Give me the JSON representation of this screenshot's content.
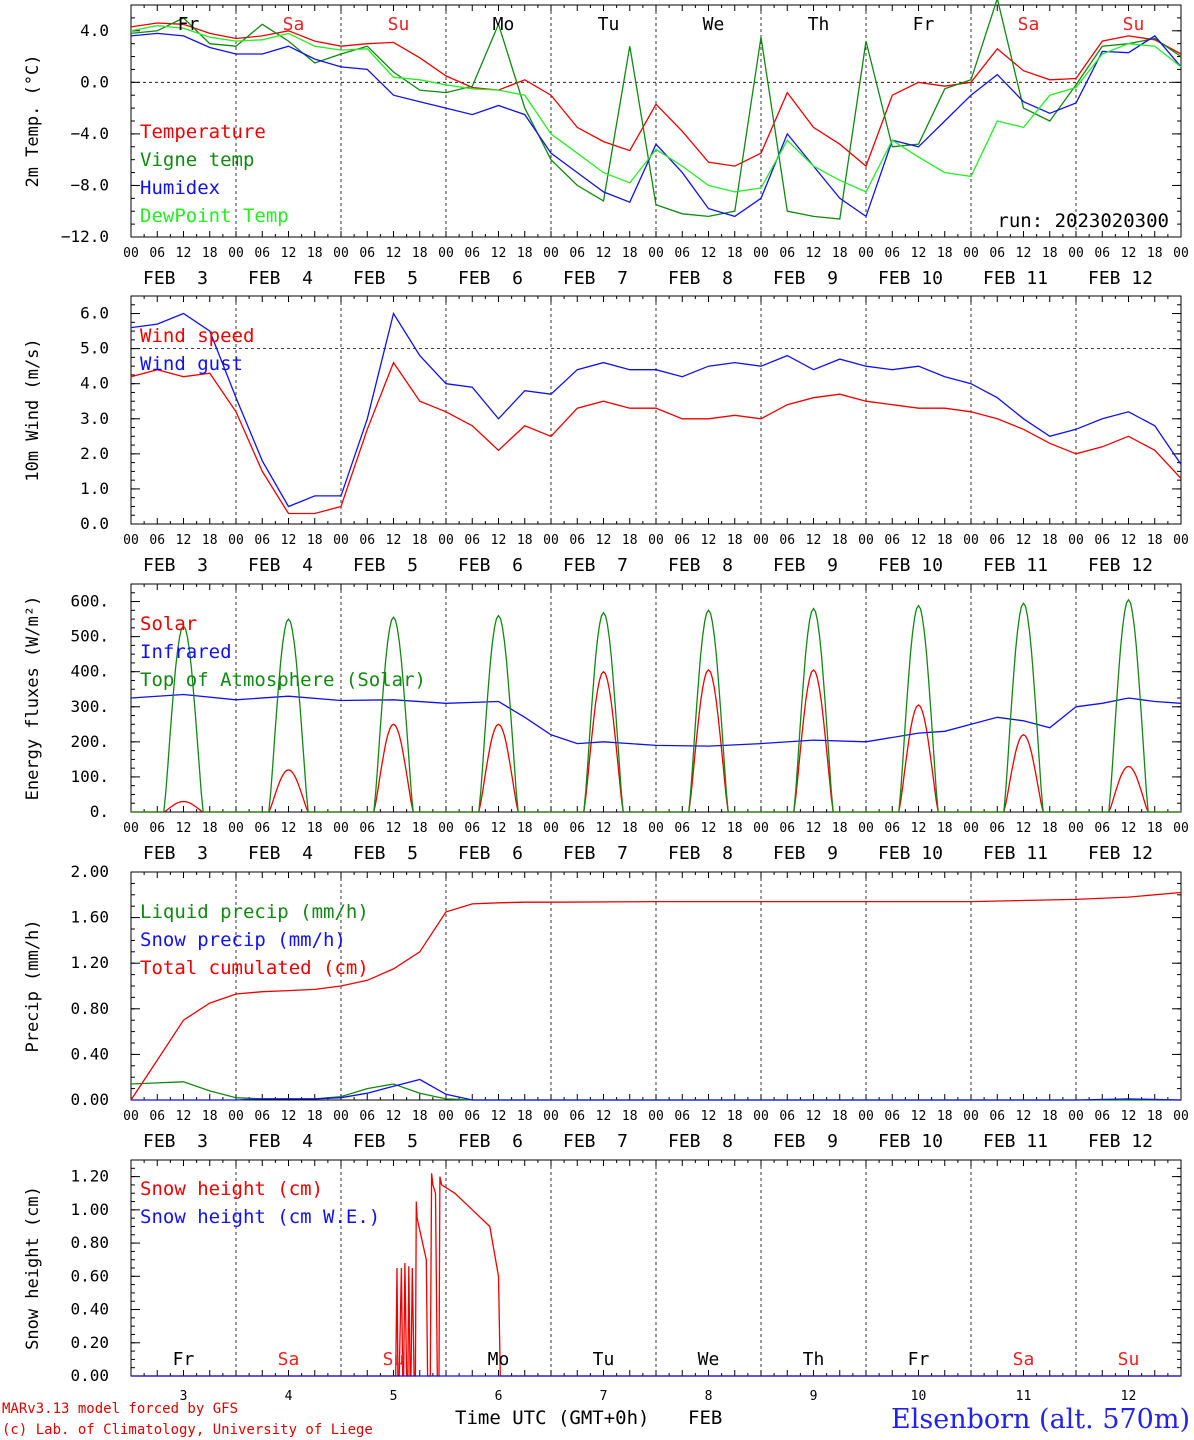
{
  "colors": {
    "red": "#ee0000",
    "green": "#118811",
    "blue": "#1111ee",
    "lightgreen": "#22ee22",
    "weekend": "#ee2222",
    "black": "#000000"
  },
  "days": {
    "weekday_labels": [
      "Fr",
      "Sa",
      "Su",
      "Mo",
      "Tu",
      "We",
      "Th",
      "Fr",
      "Sa",
      "Su"
    ],
    "weekend_flags": [
      false,
      true,
      true,
      false,
      false,
      false,
      false,
      false,
      true,
      true
    ],
    "date_labels": [
      "FEB  3",
      "FEB  4",
      "FEB  5",
      "FEB  6",
      "FEB  7",
      "FEB  8",
      "FEB  9",
      "FEB 10",
      "FEB 11",
      "FEB 12"
    ],
    "day_numbers": [
      "3",
      "4",
      "5",
      "6",
      "7",
      "8",
      "9",
      "10",
      "11",
      "12"
    ],
    "hour_ticks": [
      "00",
      "06",
      "12",
      "18"
    ],
    "final_hour": "00"
  },
  "footer": {
    "model_line": "MARv3.13 model forced by GFS",
    "credit_line": "(c) Lab. of Climatology, University of Liege",
    "axis_title": "Time UTC (GMT+0h)",
    "month": "FEB",
    "station": "Elsenborn (alt. 570m)"
  },
  "chart_data": [
    {
      "type": "line",
      "ylabel": "2m Temp. (°C)",
      "ylim": [
        -12,
        6
      ],
      "ytick_values": [
        -12,
        -8,
        -4,
        0,
        4
      ],
      "ytick_labels": [
        "−12.0",
        "−8.0",
        "−4.0",
        "0.0",
        "4.0"
      ],
      "dashed_ref": 0,
      "annotation": "run: 2023020300",
      "x_unit": "hours since FEB 3 00 UTC",
      "series": [
        {
          "name": "Temperature",
          "color": "red",
          "x": [
            0,
            6,
            12,
            18,
            24,
            30,
            36,
            42,
            48,
            54,
            60,
            66,
            72,
            78,
            84,
            90,
            96,
            102,
            108,
            114,
            120,
            126,
            132,
            138,
            144,
            150,
            156,
            162,
            168,
            174,
            180,
            186,
            192,
            198,
            204,
            210,
            216,
            222,
            228,
            234,
            240
          ],
          "y": [
            4.3,
            4.6,
            4.5,
            3.8,
            3.4,
            3.6,
            4.0,
            3.2,
            2.8,
            3.0,
            3.1,
            1.9,
            0.5,
            -0.4,
            -0.6,
            0.2,
            -1.0,
            -3.5,
            -4.6,
            -5.3,
            -1.7,
            -3.8,
            -6.2,
            -6.5,
            -5.5,
            -0.8,
            -3.5,
            -4.8,
            -6.5,
            -1.0,
            0.0,
            -0.3,
            0.0,
            2.6,
            0.9,
            0.2,
            0.3,
            3.2,
            3.6,
            3.3,
            2.2
          ]
        },
        {
          "name": "Vigne temp",
          "color": "green",
          "x": [
            0,
            6,
            12,
            18,
            24,
            30,
            36,
            42,
            48,
            54,
            60,
            66,
            72,
            78,
            84,
            90,
            96,
            102,
            108,
            114,
            120,
            126,
            132,
            138,
            144,
            150,
            156,
            162,
            168,
            174,
            180,
            186,
            192,
            198,
            204,
            210,
            216,
            222,
            228,
            234,
            240
          ],
          "y": [
            3.8,
            4.0,
            5.0,
            3.0,
            2.8,
            4.5,
            3.2,
            1.5,
            2.2,
            2.8,
            0.8,
            -0.6,
            -0.8,
            -0.3,
            4.5,
            -2.0,
            -6.0,
            -8.0,
            -9.2,
            2.8,
            -9.5,
            -10.2,
            -10.4,
            -10.0,
            3.5,
            -10.0,
            -10.4,
            -10.6,
            3.2,
            -5.0,
            -4.8,
            -0.5,
            0.2,
            6.5,
            -2.0,
            -3.0,
            -0.2,
            2.8,
            3.0,
            3.4,
            2.0
          ]
        },
        {
          "name": "Humidex",
          "color": "blue",
          "x": [
            0,
            6,
            12,
            18,
            24,
            30,
            36,
            42,
            48,
            54,
            60,
            66,
            72,
            78,
            84,
            90,
            96,
            102,
            108,
            114,
            120,
            126,
            132,
            138,
            144,
            150,
            156,
            162,
            168,
            174,
            180,
            186,
            192,
            198,
            204,
            210,
            216,
            222,
            228,
            234,
            240
          ],
          "y": [
            3.6,
            3.8,
            3.6,
            2.7,
            2.2,
            2.2,
            2.8,
            1.8,
            1.2,
            1.0,
            -1.0,
            -1.5,
            -2.0,
            -2.5,
            -1.8,
            -2.5,
            -5.5,
            -7.0,
            -8.5,
            -9.3,
            -4.8,
            -7.0,
            -9.8,
            -10.4,
            -9.0,
            -4.0,
            -6.5,
            -9.0,
            -10.4,
            -4.5,
            -5.0,
            -3.0,
            -1.0,
            0.6,
            -1.5,
            -2.4,
            -1.6,
            2.4,
            2.3,
            3.6,
            1.2
          ]
        },
        {
          "name": "DewPoint Temp",
          "color": "lightgreen",
          "x": [
            0,
            6,
            12,
            18,
            24,
            30,
            36,
            42,
            48,
            54,
            60,
            66,
            72,
            78,
            84,
            90,
            96,
            102,
            108,
            114,
            120,
            126,
            132,
            138,
            144,
            150,
            156,
            162,
            168,
            174,
            180,
            186,
            192,
            198,
            204,
            210,
            216,
            222,
            228,
            234,
            240
          ],
          "y": [
            4.0,
            4.4,
            4.2,
            3.5,
            3.2,
            3.3,
            3.8,
            2.8,
            2.5,
            2.6,
            0.4,
            0.2,
            -0.2,
            -0.5,
            -0.6,
            -1.0,
            -4.0,
            -5.5,
            -7.0,
            -7.8,
            -5.2,
            -6.5,
            -8.0,
            -8.5,
            -8.2,
            -4.5,
            -6.5,
            -7.6,
            -8.5,
            -4.5,
            -5.8,
            -7.0,
            -7.3,
            -3.0,
            -3.5,
            -1.0,
            -0.4,
            2.2,
            3.0,
            2.8,
            1.2
          ]
        }
      ]
    },
    {
      "type": "line",
      "ylabel": "10m Wind (m/s)",
      "ylim": [
        0,
        6.5
      ],
      "ytick_values": [
        0,
        1,
        2,
        3,
        4,
        5,
        6
      ],
      "ytick_labels": [
        "0.0",
        "1.0",
        "2.0",
        "3.0",
        "4.0",
        "5.0",
        "6.0"
      ],
      "dashed_ref": 5,
      "x_unit": "hours since FEB 3 00 UTC",
      "series": [
        {
          "name": "Wind speed",
          "color": "red",
          "x": [
            0,
            6,
            12,
            18,
            24,
            30,
            36,
            42,
            48,
            54,
            60,
            66,
            72,
            78,
            84,
            90,
            96,
            102,
            108,
            114,
            120,
            126,
            132,
            138,
            144,
            150,
            156,
            162,
            168,
            174,
            180,
            186,
            192,
            198,
            204,
            210,
            216,
            222,
            228,
            234,
            240
          ],
          "y": [
            4.2,
            4.4,
            4.2,
            4.3,
            3.2,
            1.5,
            0.3,
            0.3,
            0.5,
            2.7,
            4.6,
            3.5,
            3.2,
            2.8,
            2.1,
            2.8,
            2.5,
            3.3,
            3.5,
            3.3,
            3.3,
            3.0,
            3.0,
            3.1,
            3.0,
            3.4,
            3.6,
            3.7,
            3.5,
            3.4,
            3.3,
            3.3,
            3.2,
            3.0,
            2.7,
            2.3,
            2.0,
            2.2,
            2.5,
            2.1,
            1.3
          ]
        },
        {
          "name": "Wind gust",
          "color": "blue",
          "x": [
            0,
            6,
            12,
            18,
            24,
            30,
            36,
            42,
            48,
            54,
            60,
            66,
            72,
            78,
            84,
            90,
            96,
            102,
            108,
            114,
            120,
            126,
            132,
            138,
            144,
            150,
            156,
            162,
            168,
            174,
            180,
            186,
            192,
            198,
            204,
            210,
            216,
            222,
            228,
            234,
            240
          ],
          "y": [
            5.6,
            5.7,
            6.0,
            5.5,
            3.6,
            1.8,
            0.5,
            0.8,
            0.8,
            3.0,
            6.0,
            4.8,
            4.0,
            3.9,
            3.0,
            3.8,
            3.7,
            4.4,
            4.6,
            4.4,
            4.4,
            4.2,
            4.5,
            4.6,
            4.5,
            4.8,
            4.4,
            4.7,
            4.5,
            4.4,
            4.5,
            4.2,
            4.0,
            3.6,
            3.0,
            2.5,
            2.7,
            3.0,
            3.2,
            2.8,
            1.7
          ]
        }
      ]
    },
    {
      "type": "line",
      "ylabel": "Energy fluxes (W/m²)",
      "ylim": [
        0,
        650
      ],
      "ytick_values": [
        0,
        100,
        200,
        300,
        400,
        500,
        600
      ],
      "ytick_labels": [
        "0.",
        "100.",
        "200.",
        "300.",
        "400.",
        "500.",
        "600."
      ],
      "x_unit": "hours since FEB 3 00 UTC",
      "solar_noon_hour": 12,
      "solar_half_width_hours": 4.5,
      "toa_peaks": [
        530,
        550,
        555,
        560,
        568,
        575,
        580,
        588,
        595,
        605
      ],
      "solar_peaks": [
        30,
        120,
        250,
        250,
        400,
        405,
        405,
        305,
        220,
        130
      ],
      "series": [
        {
          "name": "Solar",
          "color": "red"
        },
        {
          "name": "Infrared",
          "color": "blue",
          "x": [
            0,
            12,
            24,
            36,
            48,
            60,
            72,
            84,
            90,
            96,
            102,
            108,
            120,
            132,
            144,
            156,
            168,
            180,
            186,
            192,
            198,
            204,
            210,
            216,
            222,
            228,
            234,
            240
          ],
          "y": [
            325,
            335,
            320,
            330,
            318,
            320,
            310,
            315,
            270,
            220,
            195,
            200,
            190,
            188,
            195,
            205,
            200,
            225,
            230,
            250,
            270,
            260,
            240,
            300,
            310,
            325,
            315,
            310
          ]
        },
        {
          "name": "Top of Atmosphere (Solar)",
          "color": "green"
        }
      ]
    },
    {
      "type": "line",
      "ylabel": "Precip (mm/h)",
      "ylim": [
        0,
        2.0
      ],
      "ytick_values": [
        0,
        0.4,
        0.8,
        1.2,
        1.6,
        2.0
      ],
      "ytick_labels": [
        "0.00",
        "0.40",
        "0.80",
        "1.20",
        "1.60",
        "2.00"
      ],
      "x_unit": "hours since FEB 3 00 UTC",
      "series": [
        {
          "name": "Liquid precip (mm/h)",
          "color": "green",
          "x": [
            0,
            6,
            12,
            18,
            24,
            30,
            36,
            42,
            48,
            54,
            60,
            66,
            72,
            78,
            84,
            90,
            96,
            120,
            144,
            168,
            192,
            216,
            240
          ],
          "y": [
            0.14,
            0.15,
            0.16,
            0.08,
            0.02,
            0.01,
            0.01,
            0.01,
            0.03,
            0.1,
            0.14,
            0.06,
            0.01,
            0,
            0,
            0,
            0,
            0,
            0,
            0,
            0,
            0,
            0
          ]
        },
        {
          "name": "Snow precip (mm/h)",
          "color": "blue",
          "x": [
            0,
            24,
            30,
            36,
            42,
            48,
            54,
            60,
            66,
            72,
            78,
            84,
            96,
            120,
            144,
            168,
            192,
            216,
            228,
            240
          ],
          "y": [
            0,
            0,
            0.01,
            0.01,
            0.01,
            0.02,
            0.06,
            0.12,
            0.18,
            0.05,
            0,
            0,
            0,
            0,
            0,
            0,
            0,
            0,
            0.01,
            0
          ]
        },
        {
          "name": "Total cumulated (cm)",
          "color": "red",
          "x": [
            0,
            6,
            12,
            18,
            24,
            30,
            36,
            42,
            48,
            54,
            60,
            66,
            72,
            78,
            84,
            90,
            96,
            120,
            144,
            168,
            192,
            216,
            228,
            240
          ],
          "y": [
            0,
            0.35,
            0.7,
            0.85,
            0.93,
            0.95,
            0.96,
            0.97,
            1.0,
            1.05,
            1.15,
            1.3,
            1.65,
            1.72,
            1.73,
            1.735,
            1.735,
            1.74,
            1.74,
            1.74,
            1.74,
            1.76,
            1.78,
            1.82
          ]
        }
      ]
    },
    {
      "type": "line",
      "ylabel": "Snow height (cm)",
      "ylim": [
        0,
        1.3
      ],
      "ytick_values": [
        0,
        0.2,
        0.4,
        0.6,
        0.8,
        1.0,
        1.2
      ],
      "ytick_labels": [
        "0.00",
        "0.20",
        "0.40",
        "0.60",
        "0.80",
        "1.00",
        "1.20"
      ],
      "x_unit": "hours since FEB 3 00 UTC",
      "series": [
        {
          "name": "Snow height (cm)",
          "color": "red",
          "x": [
            0,
            60.5,
            60.8,
            61.0,
            61.3,
            61.8,
            62.1,
            62.3,
            62.6,
            63.0,
            63.3,
            63.5,
            63.8,
            64.0,
            64.3,
            64.7,
            65.0,
            65.2,
            65.4,
            67.5,
            67.8,
            68.0,
            68.2,
            68.4,
            68.7,
            69.0,
            69.6,
            70.0,
            70.2,
            70.4,
            70.6,
            71.0,
            74,
            78,
            82,
            84,
            84.4,
            84.6,
            240
          ],
          "y": [
            0,
            0,
            0.65,
            0,
            0,
            0.65,
            0,
            0,
            0.68,
            0,
            0,
            0.66,
            0,
            0,
            0.65,
            0,
            0,
            1.05,
            0.95,
            0.7,
            0,
            0,
            0,
            0,
            1.22,
            1.15,
            1.1,
            0,
            0,
            0,
            1.2,
            1.15,
            1.1,
            1.0,
            0.9,
            0.6,
            0,
            0,
            0
          ]
        },
        {
          "name": "Snow height (cm W.E.)",
          "color": "blue",
          "x": [
            0,
            240
          ],
          "y": [
            0,
            0
          ]
        }
      ]
    }
  ]
}
